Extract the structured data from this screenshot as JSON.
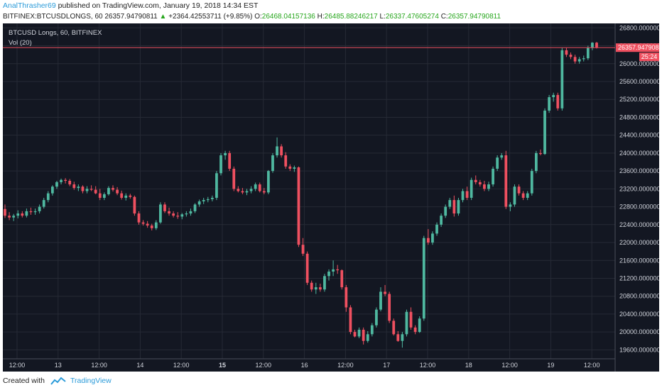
{
  "header": {
    "author": "AnalThrasher69",
    "published_text": "published on TradingView.com, January 19, 2018 14:34 EST",
    "symbol": "BITFINEX:BTCUSDLONGS, 60",
    "last": "26357.94790811",
    "change_arrow": "▲",
    "change": "+2364.42553711 (+9.85%)",
    "open_label": "O:",
    "open": "26468.04157136",
    "high_label": "H:",
    "high": "26485.88246217",
    "low_label": "L:",
    "low": "26337.47605274",
    "close_label": "C:",
    "close": "26357.94790811"
  },
  "chart": {
    "title": "BTCUSD Longs, 60, BITFINEX",
    "vol_label": "Vol (20)",
    "price_label": "26357.94790811",
    "countdown_label": "25:24",
    "colors": {
      "background": "#131722",
      "up": "#4fb8a0",
      "down": "#ef5060",
      "grid": "#262a35",
      "text": "#d0d3db"
    }
  },
  "footer": {
    "created_with": "Created with",
    "brand": "TradingView"
  },
  "chart_data": {
    "type": "candlestick",
    "title": "BTCUSD Longs, 60, BITFINEX",
    "y_axis": {
      "range": [
        19400,
        26900
      ],
      "ticks": [
        "19600.00000000",
        "20000.00000000",
        "20400.00000000",
        "20800.00000000",
        "21200.00000000",
        "21600.00000000",
        "22000.00000000",
        "22400.00000000",
        "22800.00000000",
        "23200.00000000",
        "23600.00000000",
        "24000.00000000",
        "24400.00000000",
        "24800.00000000",
        "25200.00000000",
        "25600.00000000",
        "26000.00000000",
        "26400.00000000",
        "26800.00000000"
      ]
    },
    "x_axis": {
      "ticks": [
        "12:00",
        "13",
        "12:00",
        "14",
        "12:00",
        "15",
        "12:00",
        "16",
        "12:00",
        "17",
        "12:00",
        "18",
        "12:00",
        "19",
        "12:00"
      ],
      "bold_ticks": [
        "15"
      ]
    },
    "candles": [
      [
        22750,
        22850,
        22550,
        22600
      ],
      [
        22600,
        22680,
        22500,
        22560
      ],
      [
        22560,
        22640,
        22480,
        22600
      ],
      [
        22600,
        22720,
        22540,
        22650
      ],
      [
        22650,
        22700,
        22560,
        22600
      ],
      [
        22600,
        22760,
        22560,
        22700
      ],
      [
        22700,
        22780,
        22620,
        22680
      ],
      [
        22680,
        22760,
        22620,
        22700
      ],
      [
        22700,
        22850,
        22650,
        22800
      ],
      [
        22800,
        23000,
        22760,
        22950
      ],
      [
        22950,
        23150,
        22900,
        23100
      ],
      [
        23100,
        23280,
        23050,
        23250
      ],
      [
        23250,
        23380,
        23200,
        23350
      ],
      [
        23350,
        23430,
        23300,
        23400
      ],
      [
        23400,
        23440,
        23320,
        23380
      ],
      [
        23380,
        23420,
        23260,
        23300
      ],
      [
        23300,
        23360,
        23180,
        23220
      ],
      [
        23220,
        23300,
        23150,
        23250
      ],
      [
        23250,
        23280,
        23100,
        23150
      ],
      [
        23150,
        23260,
        23100,
        23200
      ],
      [
        23200,
        23280,
        23150,
        23180
      ],
      [
        23180,
        23260,
        23080,
        23100
      ],
      [
        23100,
        23200,
        22950,
        23000
      ],
      [
        23000,
        23120,
        22950,
        23080
      ],
      [
        23080,
        23260,
        23050,
        23220
      ],
      [
        23220,
        23280,
        23140,
        23180
      ],
      [
        23180,
        23240,
        23060,
        23100
      ],
      [
        23100,
        23160,
        22960,
        23000
      ],
      [
        23000,
        23100,
        22940,
        23050
      ],
      [
        23050,
        23090,
        22980,
        23020
      ],
      [
        23020,
        23050,
        22600,
        22650
      ],
      [
        22650,
        22700,
        22400,
        22450
      ],
      [
        22450,
        22500,
        22380,
        22420
      ],
      [
        22420,
        22480,
        22330,
        22380
      ],
      [
        22380,
        22420,
        22270,
        22320
      ],
      [
        22320,
        22500,
        22280,
        22450
      ],
      [
        22450,
        22900,
        22420,
        22850
      ],
      [
        22850,
        22900,
        22660,
        22700
      ],
      [
        22700,
        22780,
        22600,
        22650
      ],
      [
        22650,
        22700,
        22560,
        22600
      ],
      [
        22600,
        22680,
        22530,
        22580
      ],
      [
        22580,
        22660,
        22520,
        22630
      ],
      [
        22630,
        22700,
        22580,
        22650
      ],
      [
        22650,
        22760,
        22600,
        22700
      ],
      [
        22700,
        22880,
        22660,
        22850
      ],
      [
        22850,
        22960,
        22800,
        22920
      ],
      [
        22920,
        23000,
        22860,
        22950
      ],
      [
        22950,
        23020,
        22900,
        22970
      ],
      [
        22970,
        23050,
        22920,
        23000
      ],
      [
        23000,
        23600,
        22950,
        23550
      ],
      [
        23550,
        24000,
        23500,
        23950
      ],
      [
        23950,
        24050,
        23850,
        24000
      ],
      [
        24000,
        24050,
        23600,
        23650
      ],
      [
        23650,
        23700,
        23150,
        23200
      ],
      [
        23200,
        23260,
        23120,
        23150
      ],
      [
        23150,
        23220,
        23080,
        23120
      ],
      [
        23120,
        23200,
        23060,
        23150
      ],
      [
        23150,
        23260,
        23100,
        23200
      ],
      [
        23200,
        23340,
        23150,
        23300
      ],
      [
        23300,
        23340,
        23120,
        23150
      ],
      [
        23150,
        23220,
        23080,
        23120
      ],
      [
        23120,
        23620,
        23080,
        23600
      ],
      [
        23600,
        24000,
        23560,
        23950
      ],
      [
        23950,
        24350,
        23900,
        24150
      ],
      [
        24150,
        24200,
        23900,
        23950
      ],
      [
        23950,
        24020,
        23650,
        23700
      ],
      [
        23700,
        23750,
        23600,
        23650
      ],
      [
        23650,
        23720,
        23580,
        23680
      ],
      [
        23680,
        23700,
        21900,
        21950
      ],
      [
        21950,
        22100,
        21700,
        21750
      ],
      [
        21750,
        21800,
        21050,
        21100
      ],
      [
        21100,
        21150,
        20900,
        20950
      ],
      [
        20950,
        21100,
        20850,
        21000
      ],
      [
        21000,
        21080,
        20900,
        20950
      ],
      [
        20950,
        21300,
        20900,
        21250
      ],
      [
        21250,
        21400,
        21150,
        21350
      ],
      [
        21350,
        21600,
        21250,
        21400
      ],
      [
        21400,
        21500,
        21300,
        21380
      ],
      [
        21380,
        21400,
        20950,
        21000
      ],
      [
        21000,
        21050,
        20450,
        20550
      ],
      [
        20550,
        20600,
        19950,
        20000
      ],
      [
        20000,
        20050,
        19880,
        19900
      ],
      [
        19900,
        20100,
        19860,
        20050
      ],
      [
        20050,
        20100,
        19720,
        19800
      ],
      [
        19800,
        20020,
        19760,
        19950
      ],
      [
        19950,
        20200,
        19900,
        20150
      ],
      [
        20150,
        20550,
        20100,
        20500
      ],
      [
        20500,
        21000,
        20460,
        20900
      ],
      [
        20900,
        21050,
        20800,
        20850
      ],
      [
        20850,
        20900,
        20200,
        20250
      ],
      [
        20250,
        20300,
        19920,
        19950
      ],
      [
        19950,
        20020,
        19780,
        19800
      ],
      [
        19800,
        20000,
        19650,
        19950
      ],
      [
        19950,
        20500,
        19900,
        20450
      ],
      [
        20450,
        20550,
        20050,
        20100
      ],
      [
        20100,
        20150,
        19950,
        20000
      ],
      [
        20000,
        20350,
        19980,
        20300
      ],
      [
        20300,
        22150,
        20250,
        22100
      ],
      [
        22100,
        22300,
        21950,
        22000
      ],
      [
        22000,
        22250,
        21950,
        22200
      ],
      [
        22200,
        22450,
        22150,
        22400
      ],
      [
        22400,
        22650,
        22350,
        22600
      ],
      [
        22600,
        22850,
        22550,
        22800
      ],
      [
        22800,
        23000,
        22750,
        22950
      ],
      [
        22950,
        23050,
        22580,
        22650
      ],
      [
        22650,
        23000,
        22600,
        22950
      ],
      [
        22950,
        23200,
        22900,
        23150
      ],
      [
        23150,
        23250,
        22950,
        23000
      ],
      [
        23000,
        23450,
        22950,
        23400
      ],
      [
        23400,
        23500,
        23300,
        23350
      ],
      [
        23350,
        23400,
        23250,
        23300
      ],
      [
        23300,
        23380,
        23150,
        23200
      ],
      [
        23200,
        23360,
        23150,
        23300
      ],
      [
        23300,
        23700,
        23250,
        23650
      ],
      [
        23650,
        23950,
        23600,
        23900
      ],
      [
        23900,
        24000,
        23850,
        23950
      ],
      [
        23950,
        24050,
        22750,
        22800
      ],
      [
        22800,
        22900,
        22700,
        22850
      ],
      [
        22850,
        23300,
        22800,
        23250
      ],
      [
        23250,
        23300,
        23050,
        23100
      ],
      [
        23100,
        23150,
        22950,
        23000
      ],
      [
        23000,
        23150,
        22950,
        23100
      ],
      [
        23100,
        23650,
        23050,
        23600
      ],
      [
        23600,
        24050,
        23550,
        24000
      ],
      [
        24000,
        24080,
        23950,
        23980
      ],
      [
        23980,
        25000,
        23960,
        24950
      ],
      [
        24950,
        25300,
        24900,
        25250
      ],
      [
        25250,
        25350,
        25150,
        25300
      ],
      [
        25300,
        25350,
        24950,
        25000
      ],
      [
        25000,
        26350,
        24950,
        26300
      ],
      [
        26300,
        26350,
        26150,
        26200
      ],
      [
        26200,
        26250,
        26100,
        26150
      ],
      [
        26150,
        26200,
        26000,
        26050
      ],
      [
        26050,
        26150,
        26000,
        26100
      ],
      [
        26100,
        26180,
        26050,
        26120
      ],
      [
        26120,
        26400,
        26080,
        26350
      ],
      [
        26350,
        26480,
        26300,
        26468
      ],
      [
        26468,
        26486,
        26337,
        26358
      ]
    ]
  }
}
